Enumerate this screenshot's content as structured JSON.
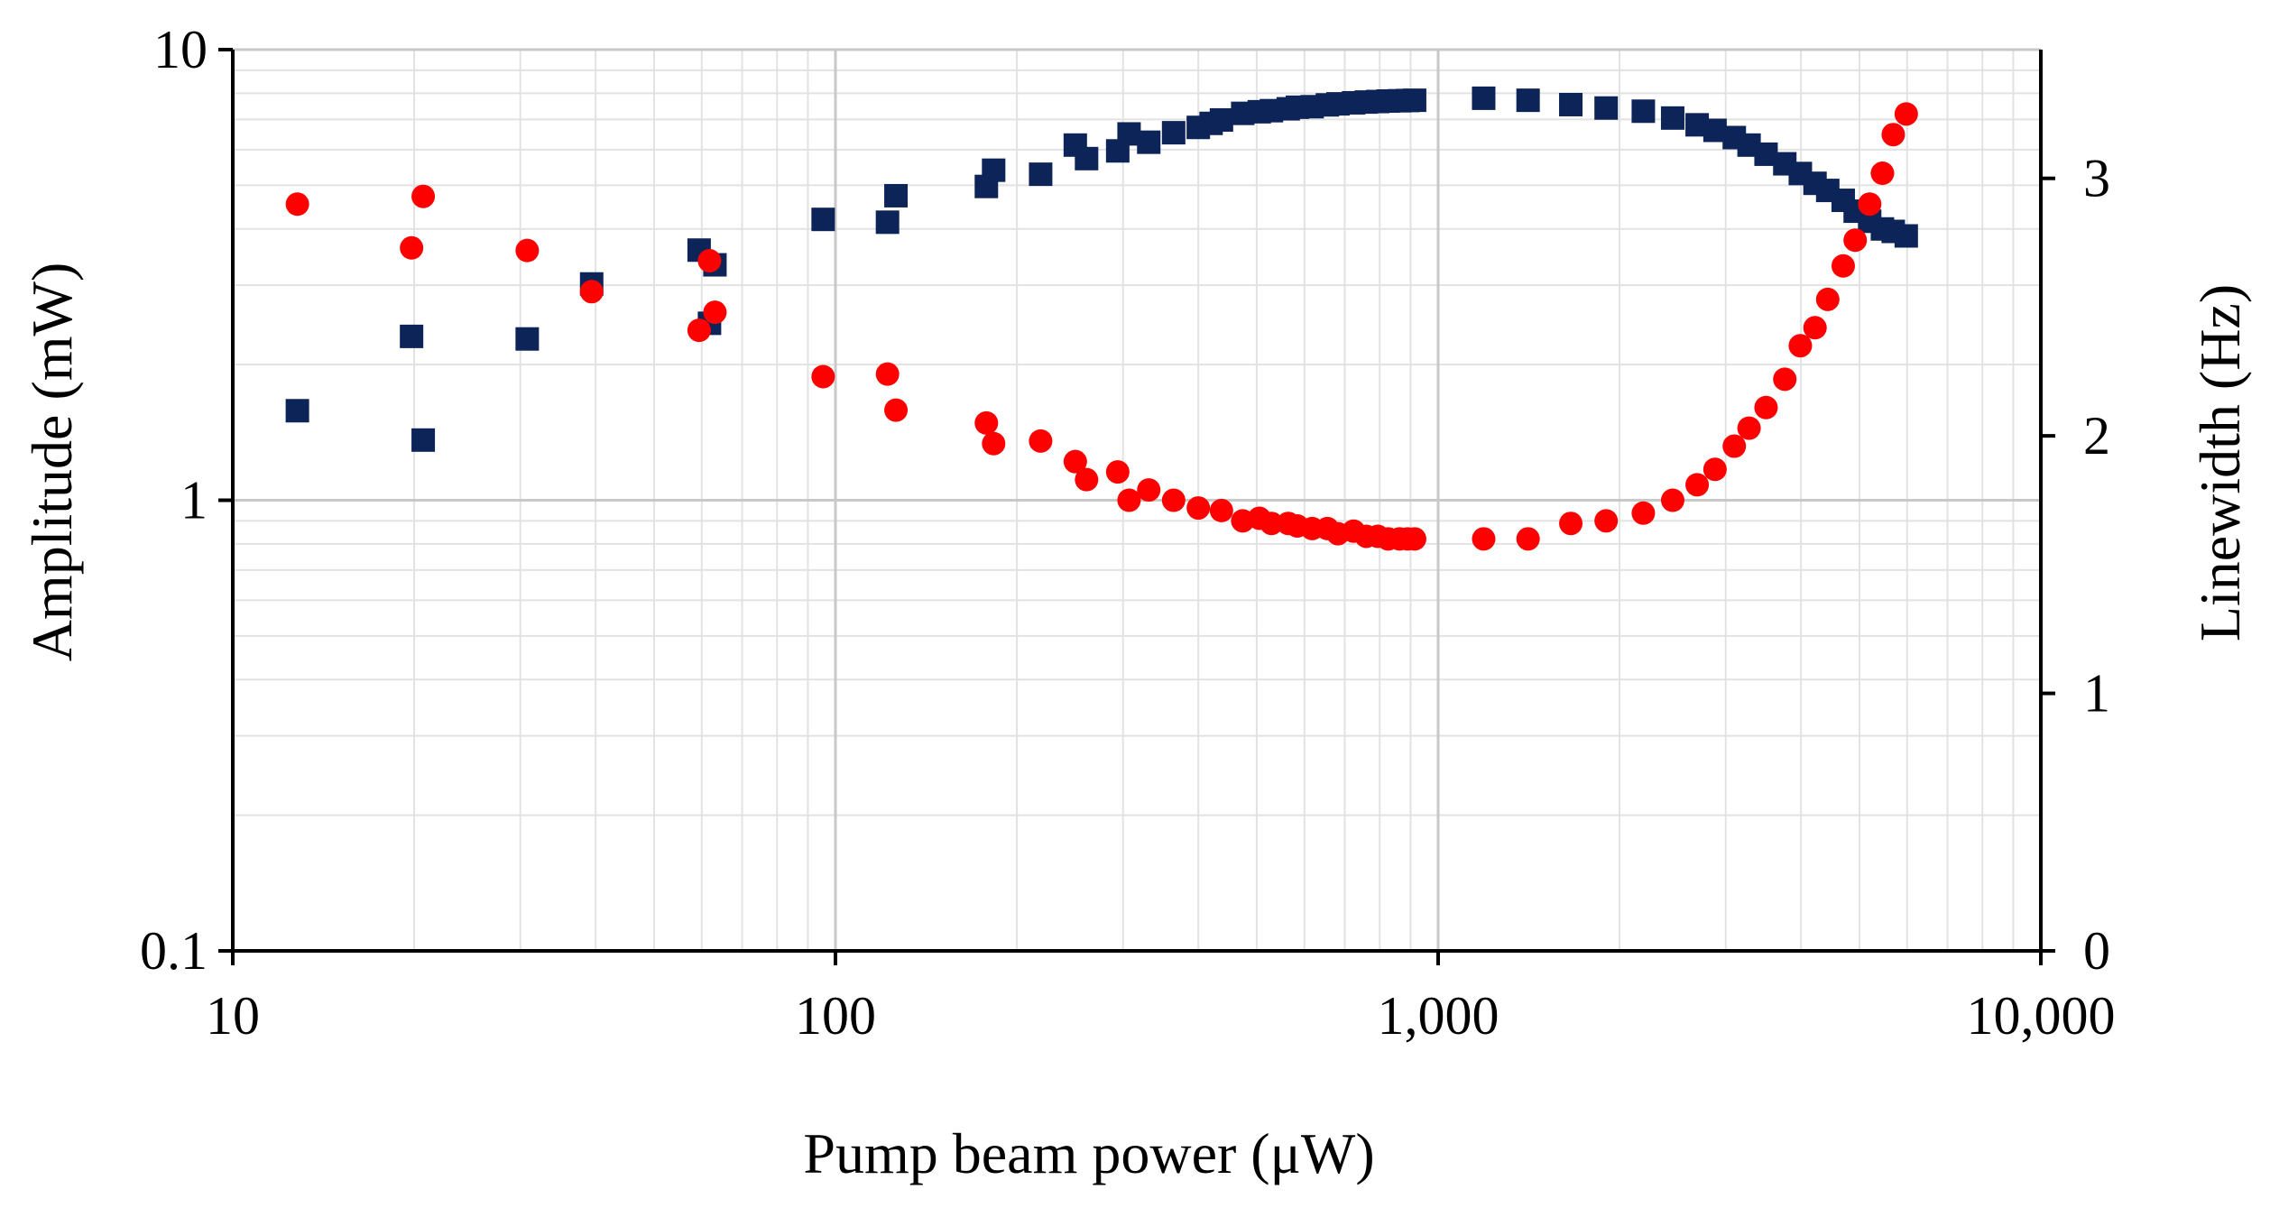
{
  "chart_data": {
    "type": "scatter",
    "title": "",
    "xlabel": "Pump beam power (μW)",
    "ylabel": "Amplitude (mW)",
    "y2label": "Linewidth (Hz)",
    "xscale": "log",
    "yscale": "log",
    "xlim": [
      10,
      10000
    ],
    "ylim": [
      0.1,
      10
    ],
    "y2lim": [
      0,
      3.5
    ],
    "grid": true,
    "x_ticks": [
      "10",
      "100",
      "1,000",
      "10,000"
    ],
    "y_ticks": [
      "10",
      "1",
      "0.1"
    ],
    "y2_ticks": [
      "3",
      "2",
      "1",
      "0"
    ],
    "colors": {
      "amplitude": "#0d2459",
      "linewidth": "#ff0000",
      "grid_major": "#c8c8c8",
      "grid_minor": "#e2e2e2",
      "axis": "#000000"
    },
    "series": [
      {
        "name": "Amplitude",
        "axis": "left",
        "marker": "square",
        "x": [
          12.8,
          19.8,
          20.7,
          30.8,
          39.4,
          59.4,
          61.8,
          63.1,
          95.4,
          122,
          126,
          178,
          183,
          219,
          250,
          261,
          294,
          307,
          331,
          364,
          400,
          420,
          437,
          474,
          505,
          529,
          564,
          584,
          618,
          655,
          682,
          724,
          760,
          794,
          826,
          863,
          890,
          914,
          1190,
          1410,
          1660,
          1900,
          2190,
          2450,
          2690,
          2880,
          3100,
          3280,
          3500,
          3760,
          3990,
          4220,
          4430,
          4700,
          4920,
          5200,
          5460,
          5690,
          5980
        ],
        "y": [
          1.58,
          2.31,
          1.36,
          2.28,
          3.02,
          3.59,
          2.47,
          3.33,
          4.2,
          4.14,
          4.74,
          4.97,
          5.4,
          5.29,
          6.14,
          5.73,
          5.96,
          6.5,
          6.23,
          6.54,
          6.72,
          6.86,
          6.98,
          7.22,
          7.28,
          7.32,
          7.39,
          7.45,
          7.47,
          7.54,
          7.58,
          7.62,
          7.65,
          7.67,
          7.69,
          7.7,
          7.71,
          7.72,
          7.8,
          7.72,
          7.55,
          7.42,
          7.3,
          7.05,
          6.81,
          6.62,
          6.38,
          6.14,
          5.86,
          5.58,
          5.31,
          5.05,
          4.87,
          4.63,
          4.38,
          4.16,
          4.0,
          3.95,
          3.86
        ]
      },
      {
        "name": "Linewidth",
        "axis": "right",
        "marker": "circle",
        "x": [
          12.8,
          19.8,
          20.7,
          30.8,
          39.4,
          59.4,
          61.8,
          63.1,
          95.4,
          122,
          126,
          178,
          183,
          219,
          250,
          261,
          294,
          307,
          331,
          364,
          400,
          437,
          474,
          505,
          529,
          564,
          584,
          618,
          655,
          682,
          724,
          760,
          794,
          826,
          863,
          890,
          914,
          1190,
          1410,
          1660,
          1900,
          2190,
          2450,
          2690,
          2880,
          3100,
          3280,
          3500,
          3760,
          3990,
          4220,
          4430,
          4700,
          4920,
          5200,
          5460,
          5690,
          5980
        ],
        "y": [
          2.9,
          2.73,
          2.93,
          2.72,
          2.56,
          2.41,
          2.68,
          2.48,
          2.23,
          2.24,
          2.1,
          2.05,
          1.97,
          1.98,
          1.9,
          1.83,
          1.86,
          1.75,
          1.79,
          1.75,
          1.72,
          1.71,
          1.67,
          1.68,
          1.66,
          1.66,
          1.65,
          1.64,
          1.64,
          1.62,
          1.63,
          1.61,
          1.61,
          1.6,
          1.6,
          1.6,
          1.6,
          1.6,
          1.6,
          1.66,
          1.67,
          1.7,
          1.75,
          1.81,
          1.87,
          1.96,
          2.03,
          2.11,
          2.22,
          2.35,
          2.42,
          2.53,
          2.66,
          2.76,
          2.9,
          3.02,
          3.17,
          3.25
        ]
      }
    ]
  }
}
